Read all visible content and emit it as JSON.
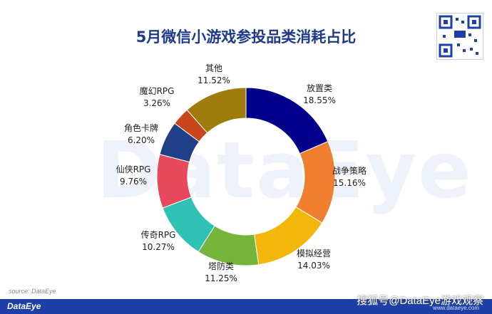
{
  "title": "5月微信小游戏参投品类消耗占比",
  "watermark": "DataEye",
  "source": "source: DataEye",
  "brand": "DataEye",
  "corner_watermark": "搜狐号@DataEye游戏观察",
  "corner_url": "www.dataeye.com",
  "chart_data": {
    "type": "pie",
    "donut": true,
    "title": "5月微信小游戏参投品类消耗占比",
    "categories": [
      "放置类",
      "战争策略",
      "模拟经营",
      "塔防类",
      "传奇RPG",
      "仙侠RPG",
      "角色卡牌",
      "魔幻RPG",
      "其他"
    ],
    "values": [
      18.55,
      15.16,
      14.03,
      11.25,
      10.27,
      9.76,
      6.2,
      3.26,
      11.52
    ],
    "value_labels": [
      "18.55%",
      "15.16%",
      "14.03%",
      "11.25%",
      "10.27%",
      "9.76%",
      "6.20%",
      "3.26%",
      "11.52%"
    ],
    "colors": [
      "#00008b",
      "#ef7f2e",
      "#f3b70c",
      "#76b53c",
      "#2fc1b3",
      "#e64a5c",
      "#1f3f86",
      "#c9461c",
      "#9e7d0c"
    ],
    "legend": "none"
  }
}
